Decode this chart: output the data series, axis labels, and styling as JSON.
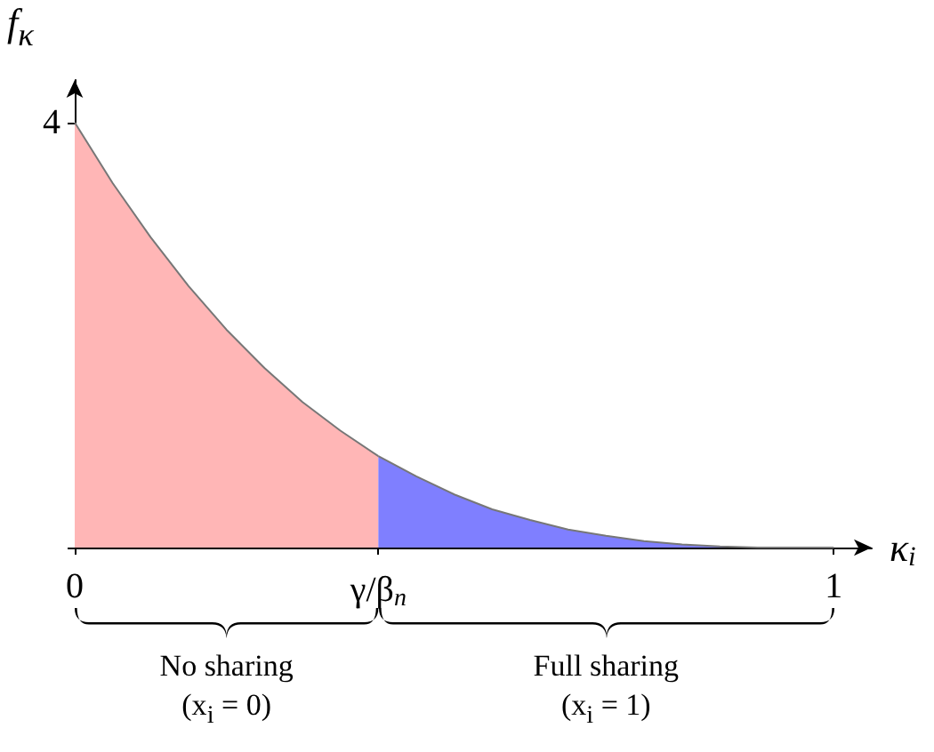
{
  "chart_data": {
    "type": "area",
    "xlabel": "κ$_{i}$",
    "ylabel": "f$_{κ}$",
    "xlim": [
      0,
      1.05
    ],
    "ylim": [
      0,
      4.4
    ],
    "xticks": [
      0,
      {
        "value": 0.4,
        "label": "γ/β$_{n}$"
      },
      1
    ],
    "yticks": [
      {
        "value": 0,
        "label": null
      },
      4
    ],
    "series": [
      {
        "color": "#ffb6b6",
        "x": [
          0,
          0.05,
          0.1,
          0.15,
          0.2,
          0.25,
          0.3,
          0.35,
          0.4
        ],
        "values": [
          4,
          3.43,
          2.92,
          2.46,
          2.05,
          1.69,
          1.37,
          1.1,
          0.86
        ]
      },
      {
        "color": "#7f7fff",
        "x": [
          0.4,
          0.45,
          0.5,
          0.55,
          0.6,
          0.65,
          0.7,
          0.75,
          0.8,
          0.85,
          0.9,
          0.95,
          1
        ],
        "values": [
          0.86,
          0.67,
          0.5,
          0.36,
          0.26,
          0.17,
          0.11,
          0.06,
          0.03,
          0.01,
          0,
          0,
          0
        ]
      }
    ],
    "annotations": [
      "No sharing\n(x$_{i}$ = 0)",
      "Full sharing\n(x$_{i}$ = 1)"
    ],
    "grid": false,
    "marker": "none",
    "line_style": "solid"
  }
}
